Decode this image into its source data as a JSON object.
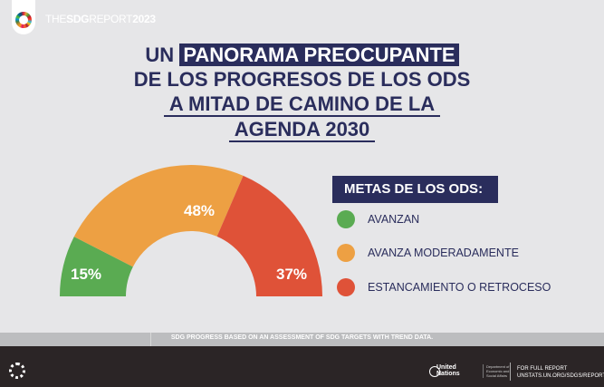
{
  "header": {
    "report_prefix": "THE",
    "report_bold": "SDG",
    "report_mid": "REPORT",
    "report_year": "2023"
  },
  "title": {
    "line1_a": "UN",
    "line1_b": "PANORAMA PREOCUPANTE",
    "line2": "DE LOS PROGRESOS DE LOS ODS",
    "line3": "A MITAD DE CAMINO DE LA",
    "line4": "AGENDA 2030"
  },
  "legend": {
    "heading": "METAS DE LOS ODS:",
    "items": [
      {
        "label": "AVANZAN",
        "color": "#5aab52"
      },
      {
        "label": "AVANZA MODERADAMENTE",
        "color": "#eda043"
      },
      {
        "label": "ESTANCAMIENTO O RETROCESO",
        "color": "#df5238"
      }
    ]
  },
  "chart_data": {
    "type": "pie",
    "variant": "half-donut",
    "categories": [
      "AVANZAN",
      "AVANZA MODERADAMENTE",
      "ESTANCAMIENTO O RETROCESO"
    ],
    "values": [
      15,
      48,
      37
    ],
    "data_labels": [
      "15%",
      "48%",
      "37%"
    ],
    "colors": [
      "#5aab52",
      "#eda043",
      "#df5238"
    ]
  },
  "footnote": "SDG PROGRESS BASED ON AN ASSESSMENT OF SDG TARGETS WITH TREND DATA.",
  "footer": {
    "un_line1": "United",
    "un_line2": "Nations",
    "dept": "Department of Economic and Social Affairs",
    "full_report_label": "FOR FULL REPORT",
    "full_report_url": "UNSTATS.UN.ORG/SDGS/REPORT/2023"
  }
}
